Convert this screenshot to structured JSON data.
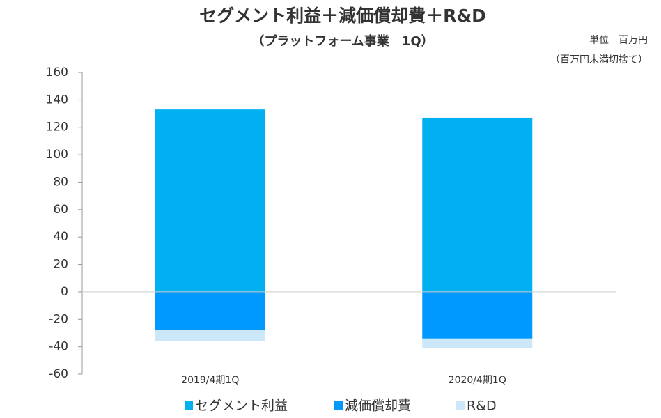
{
  "chart_data": {
    "type": "stacked_bar",
    "title": "セグメント利益＋減価償却費＋R&D",
    "subtitle": "（プラットフォーム事業　1Q）",
    "annotations": [
      "単位　百万円",
      "（百万円未満切捨て）"
    ],
    "categories": [
      "2019/4期1Q",
      "2020/4期1Q"
    ],
    "series": [
      {
        "name": "セグメント利益",
        "color": "#00b0f0",
        "values": [
          133,
          127
        ]
      },
      {
        "name": "減価償却費",
        "color": "#0099ff",
        "values": [
          -28,
          -34
        ]
      },
      {
        "name": "R&D",
        "color": "#cce8f8",
        "values": [
          -8,
          -7
        ]
      }
    ],
    "ylim": [
      -60,
      160
    ],
    "yticks": [
      -60,
      -40,
      -20,
      0,
      20,
      40,
      60,
      80,
      100,
      120,
      140,
      160
    ],
    "grid": false,
    "legend": "bottom"
  }
}
